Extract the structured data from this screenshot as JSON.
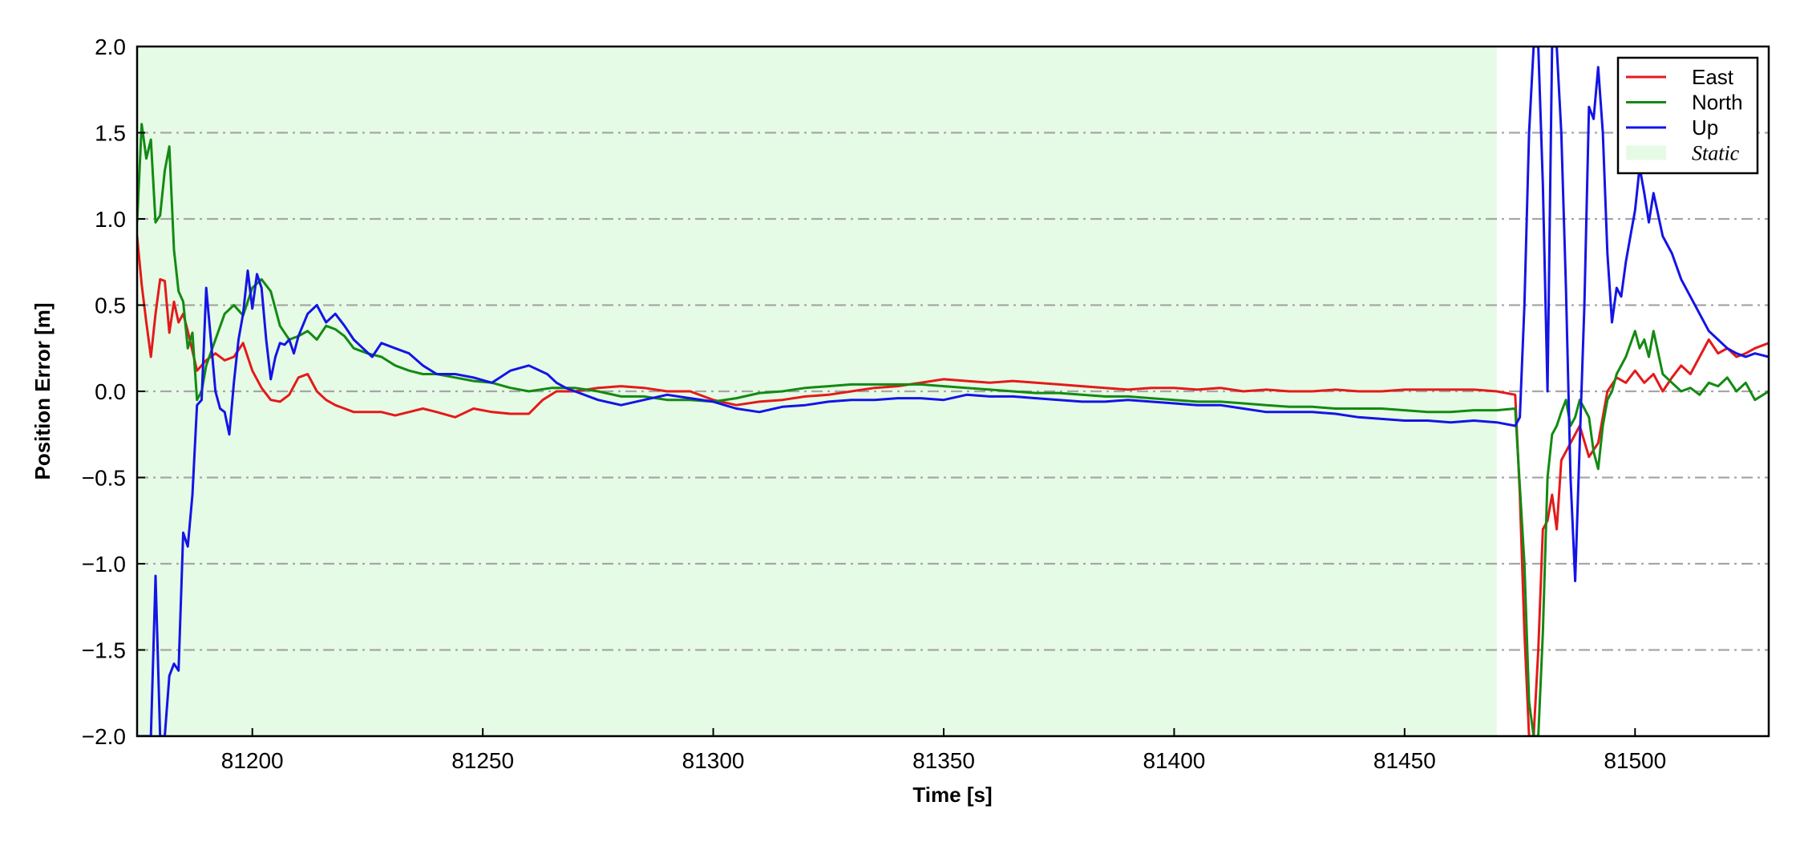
{
  "chart_data": {
    "type": "line",
    "title": "",
    "xlabel": "Time [s]",
    "ylabel": "Position Error [m]",
    "xlim": [
      81175,
      81529
    ],
    "ylim": [
      -2.0,
      2.0
    ],
    "xticks": [
      81200,
      81250,
      81300,
      81350,
      81400,
      81450,
      81500
    ],
    "yticks": [
      -2.0,
      -1.5,
      -1.0,
      -0.5,
      0.0,
      0.5,
      1.0,
      1.5,
      2.0
    ],
    "xtick_labels": [
      "81200",
      "81250",
      "81300",
      "81350",
      "81400",
      "81450",
      "81500"
    ],
    "ytick_labels": [
      "−2.0",
      "−1.5",
      "−1.0",
      "−0.5",
      "0.0",
      "0.5",
      "1.0",
      "1.5",
      "2.0"
    ],
    "grid": "horizontal dash-dot",
    "legend_position": "top-right",
    "shaded_regions": [
      {
        "name": "Static",
        "x": [
          81175,
          81470
        ],
        "color": "#e6fbe6"
      }
    ],
    "series": [
      {
        "name": "East",
        "color": "#e41a1a",
        "x": [
          81175,
          81176,
          81177,
          81178,
          81179,
          81180,
          81181,
          81182,
          81183,
          81184,
          81185,
          81186,
          81188,
          81190,
          81192,
          81194,
          81196,
          81198,
          81200,
          81202,
          81204,
          81206,
          81208,
          81210,
          81212,
          81214,
          81216,
          81218,
          81220,
          81222,
          81225,
          81228,
          81231,
          81234,
          81237,
          81240,
          81244,
          81248,
          81252,
          81256,
          81260,
          81263,
          81266,
          81270,
          81275,
          81280,
          81285,
          81290,
          81295,
          81300,
          81305,
          81310,
          81315,
          81320,
          81325,
          81330,
          81335,
          81340,
          81345,
          81350,
          81355,
          81360,
          81365,
          81370,
          81375,
          81380,
          81385,
          81390,
          81395,
          81400,
          81405,
          81410,
          81415,
          81420,
          81425,
          81430,
          81435,
          81440,
          81445,
          81450,
          81455,
          81460,
          81465,
          81470,
          81474,
          81475,
          81476,
          81477,
          81478,
          81479,
          81480,
          81481,
          81482,
          81483,
          81484,
          81486,
          81488,
          81490,
          81492,
          81494,
          81496,
          81498,
          81500,
          81502,
          81504,
          81506,
          81508,
          81510,
          81512,
          81514,
          81516,
          81518,
          81520,
          81522,
          81524,
          81526,
          81529
        ],
        "values": [
          0.9,
          0.62,
          0.4,
          0.2,
          0.45,
          0.65,
          0.64,
          0.34,
          0.52,
          0.4,
          0.45,
          0.35,
          0.12,
          0.18,
          0.22,
          0.18,
          0.2,
          0.28,
          0.12,
          0.02,
          -0.05,
          -0.06,
          -0.02,
          0.08,
          0.1,
          0.0,
          -0.05,
          -0.08,
          -0.1,
          -0.12,
          -0.12,
          -0.12,
          -0.14,
          -0.12,
          -0.1,
          -0.12,
          -0.15,
          -0.1,
          -0.12,
          -0.13,
          -0.13,
          -0.05,
          0.0,
          0.0,
          0.02,
          0.03,
          0.02,
          0.0,
          0.0,
          -0.05,
          -0.08,
          -0.06,
          -0.05,
          -0.03,
          -0.02,
          0.0,
          0.02,
          0.03,
          0.05,
          0.07,
          0.06,
          0.05,
          0.06,
          0.05,
          0.04,
          0.03,
          0.02,
          0.01,
          0.02,
          0.02,
          0.01,
          0.02,
          0.0,
          0.01,
          0.0,
          0.0,
          0.01,
          0.0,
          0.0,
          0.01,
          0.01,
          0.01,
          0.01,
          0.0,
          -0.02,
          -0.6,
          -1.4,
          -2.0,
          -2.0,
          -1.5,
          -0.8,
          -0.75,
          -0.6,
          -0.8,
          -0.4,
          -0.3,
          -0.2,
          -0.38,
          -0.3,
          0.0,
          0.08,
          0.05,
          0.12,
          0.05,
          0.1,
          0.0,
          0.08,
          0.15,
          0.1,
          0.2,
          0.3,
          0.22,
          0.25,
          0.2,
          0.22,
          0.25,
          0.28
        ]
      },
      {
        "name": "North",
        "color": "#138a13",
        "x": [
          81175,
          81176,
          81177,
          81178,
          81179,
          81180,
          81181,
          81182,
          81183,
          81184,
          81185,
          81186,
          81187,
          81188,
          81189,
          81190,
          81192,
          81194,
          81196,
          81198,
          81200,
          81202,
          81204,
          81206,
          81208,
          81210,
          81212,
          81214,
          81216,
          81218,
          81220,
          81222,
          81225,
          81228,
          81231,
          81234,
          81237,
          81240,
          81244,
          81248,
          81252,
          81256,
          81260,
          81265,
          81270,
          81275,
          81280,
          81285,
          81290,
          81295,
          81300,
          81305,
          81310,
          81315,
          81320,
          81325,
          81330,
          81335,
          81340,
          81345,
          81350,
          81355,
          81360,
          81365,
          81370,
          81375,
          81380,
          81385,
          81390,
          81395,
          81400,
          81405,
          81410,
          81415,
          81420,
          81425,
          81430,
          81435,
          81440,
          81445,
          81450,
          81455,
          81460,
          81465,
          81470,
          81474,
          81476,
          81477,
          81478,
          81479,
          81480,
          81481,
          81482,
          81483,
          81484,
          81485,
          81486,
          81487,
          81488,
          81489,
          81490,
          81491,
          81492,
          81493,
          81494,
          81495,
          81496,
          81498,
          81500,
          81501,
          81502,
          81503,
          81504,
          81506,
          81508,
          81510,
          81512,
          81514,
          81516,
          81518,
          81520,
          81522,
          81524,
          81526,
          81529
        ],
        "values": [
          0.98,
          1.55,
          1.35,
          1.46,
          0.98,
          1.02,
          1.28,
          1.42,
          0.82,
          0.58,
          0.52,
          0.25,
          0.34,
          -0.05,
          0.0,
          0.15,
          0.3,
          0.45,
          0.5,
          0.44,
          0.6,
          0.65,
          0.58,
          0.38,
          0.3,
          0.32,
          0.35,
          0.3,
          0.38,
          0.36,
          0.32,
          0.25,
          0.22,
          0.2,
          0.15,
          0.12,
          0.1,
          0.1,
          0.08,
          0.06,
          0.05,
          0.02,
          0.0,
          0.02,
          0.02,
          0.0,
          -0.03,
          -0.03,
          -0.05,
          -0.05,
          -0.06,
          -0.04,
          -0.01,
          0.0,
          0.02,
          0.03,
          0.04,
          0.04,
          0.04,
          0.04,
          0.03,
          0.02,
          0.01,
          0.0,
          -0.01,
          -0.01,
          -0.02,
          -0.03,
          -0.03,
          -0.04,
          -0.05,
          -0.06,
          -0.06,
          -0.07,
          -0.08,
          -0.09,
          -0.09,
          -0.1,
          -0.1,
          -0.1,
          -0.11,
          -0.12,
          -0.12,
          -0.11,
          -0.11,
          -0.1,
          -1.0,
          -1.8,
          -2.0,
          -2.0,
          -1.4,
          -0.5,
          -0.25,
          -0.2,
          -0.12,
          -0.05,
          -0.2,
          -0.15,
          -0.05,
          -0.1,
          -0.15,
          -0.35,
          -0.45,
          -0.2,
          -0.05,
          0.0,
          0.1,
          0.2,
          0.35,
          0.25,
          0.3,
          0.2,
          0.35,
          0.1,
          0.05,
          0.0,
          0.02,
          -0.02,
          0.05,
          0.03,
          0.08,
          0.0,
          0.05,
          -0.05,
          0.0
        ]
      },
      {
        "name": "Up",
        "color": "#1414e6",
        "x": [
          81175,
          81178,
          81179,
          81180,
          81181,
          81182,
          81183,
          81184,
          81185,
          81186,
          81187,
          81188,
          81189,
          81190,
          81191,
          81192,
          81193,
          81194,
          81195,
          81196,
          81197,
          81198,
          81199,
          81200,
          81201,
          81202,
          81203,
          81204,
          81205,
          81206,
          81207,
          81208,
          81209,
          81210,
          81212,
          81214,
          81216,
          81218,
          81220,
          81222,
          81224,
          81226,
          81228,
          81231,
          81234,
          81237,
          81240,
          81244,
          81248,
          81252,
          81256,
          81260,
          81264,
          81266,
          81268,
          81270,
          81275,
          81280,
          81285,
          81290,
          81295,
          81300,
          81305,
          81310,
          81315,
          81320,
          81325,
          81330,
          81335,
          81340,
          81345,
          81350,
          81355,
          81360,
          81365,
          81370,
          81375,
          81380,
          81385,
          81390,
          81395,
          81400,
          81405,
          81410,
          81415,
          81420,
          81425,
          81430,
          81435,
          81440,
          81445,
          81450,
          81455,
          81460,
          81465,
          81470,
          81474,
          81475,
          81476,
          81477,
          81478,
          81479,
          81480,
          81481,
          81482,
          81483,
          81484,
          81485,
          81486,
          81487,
          81488,
          81489,
          81490,
          81491,
          81492,
          81493,
          81494,
          81495,
          81496,
          81497,
          81498,
          81499,
          81500,
          81501,
          81502,
          81503,
          81504,
          81506,
          81508,
          81510,
          81512,
          81514,
          81516,
          81518,
          81520,
          81522,
          81524,
          81526,
          81529
        ],
        "values": [
          -2.0,
          -2.0,
          -1.07,
          -2.0,
          -2.0,
          -1.65,
          -1.58,
          -1.62,
          -0.82,
          -0.9,
          -0.6,
          -0.08,
          -0.05,
          0.6,
          0.3,
          0.0,
          -0.1,
          -0.12,
          -0.25,
          0.05,
          0.3,
          0.45,
          0.7,
          0.48,
          0.68,
          0.6,
          0.3,
          0.07,
          0.2,
          0.28,
          0.27,
          0.3,
          0.22,
          0.32,
          0.45,
          0.5,
          0.4,
          0.45,
          0.38,
          0.3,
          0.25,
          0.2,
          0.28,
          0.25,
          0.22,
          0.15,
          0.1,
          0.1,
          0.08,
          0.05,
          0.12,
          0.15,
          0.1,
          0.05,
          0.02,
          0.0,
          -0.05,
          -0.08,
          -0.05,
          -0.02,
          -0.04,
          -0.06,
          -0.1,
          -0.12,
          -0.09,
          -0.08,
          -0.06,
          -0.05,
          -0.05,
          -0.04,
          -0.04,
          -0.05,
          -0.02,
          -0.03,
          -0.03,
          -0.04,
          -0.05,
          -0.06,
          -0.06,
          -0.05,
          -0.06,
          -0.07,
          -0.08,
          -0.08,
          -0.1,
          -0.12,
          -0.12,
          -0.12,
          -0.13,
          -0.15,
          -0.16,
          -0.17,
          -0.17,
          -0.18,
          -0.17,
          -0.18,
          -0.2,
          -0.15,
          0.5,
          1.5,
          2.0,
          2.0,
          1.2,
          0.0,
          2.0,
          2.0,
          1.5,
          0.6,
          -0.5,
          -1.1,
          -0.3,
          0.5,
          1.65,
          1.58,
          1.88,
          1.5,
          0.8,
          0.4,
          0.6,
          0.55,
          0.75,
          0.9,
          1.05,
          1.3,
          1.15,
          0.98,
          1.15,
          0.9,
          0.8,
          0.65,
          0.55,
          0.45,
          0.35,
          0.3,
          0.25,
          0.22,
          0.2,
          0.22,
          0.2
        ]
      }
    ],
    "legend": [
      {
        "label": "East",
        "kind": "line",
        "color": "#e41a1a"
      },
      {
        "label": "North",
        "kind": "line",
        "color": "#138a13"
      },
      {
        "label": "Up",
        "kind": "line",
        "color": "#1414e6"
      },
      {
        "label": "Static",
        "kind": "patch",
        "color": "#e6fbe6",
        "italic": true
      }
    ]
  }
}
